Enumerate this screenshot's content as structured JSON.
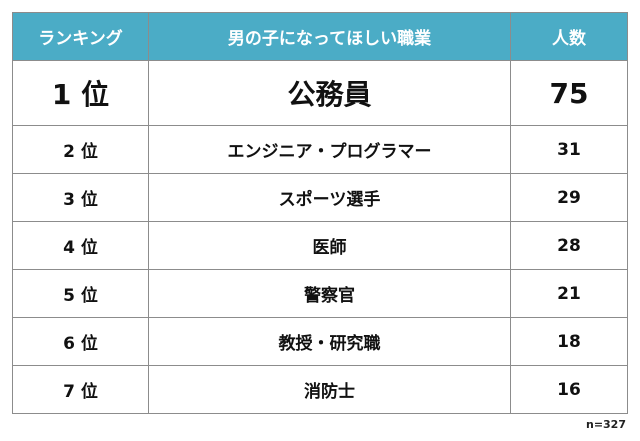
{
  "table": {
    "header": [
      "ランキング",
      "男の子になってほしい職業",
      "人数"
    ],
    "rows": [
      [
        "1 位",
        "公務員",
        75
      ],
      [
        "2 位",
        "エンジニア・プログラマー",
        31
      ],
      [
        "3 位",
        "スポーツ選手",
        29
      ],
      [
        "4 位",
        "医師",
        28
      ],
      [
        "5 位",
        "警察官",
        21
      ],
      [
        "6 位",
        "教授・研究職",
        18
      ],
      [
        "7 位",
        "消防士",
        16
      ]
    ]
  },
  "footnote": "n=327"
}
